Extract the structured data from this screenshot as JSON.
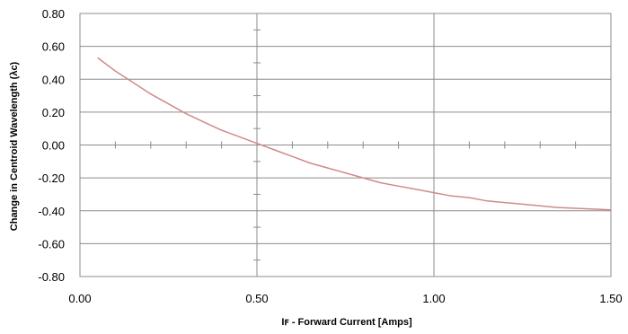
{
  "chart_data": {
    "type": "line",
    "title": "",
    "xlabel": "Iꜰ - Forward Current [Amps]",
    "ylabel": "Change in Centroid Wavelength (λc)",
    "xlim": [
      0,
      1.5
    ],
    "ylim": [
      -0.8,
      0.8
    ],
    "x_ticks": [
      0,
      0.5,
      1.0,
      1.5
    ],
    "x_tick_labels": [
      "0.00",
      "0.50",
      "1.00",
      "1.50"
    ],
    "y_ticks": [
      0.8,
      0.6,
      0.4,
      0.2,
      0,
      -0.2,
      -0.4,
      -0.6,
      -0.8
    ],
    "y_tick_labels": [
      "0.80",
      "0.60",
      "0.40",
      "0.20",
      "0.00",
      "-0.20",
      "-0.40",
      "-0.60",
      "-0.80"
    ],
    "grid": true,
    "line_color": "#d08a8a",
    "series": [
      {
        "x": [
          0.05,
          0.1,
          0.15,
          0.2,
          0.25,
          0.3,
          0.35,
          0.4,
          0.45,
          0.5,
          0.55,
          0.6,
          0.65,
          0.7,
          0.75,
          0.8,
          0.85,
          0.9,
          0.95,
          1.0,
          1.05,
          1.1,
          1.15,
          1.2,
          1.25,
          1.3,
          1.35,
          1.4,
          1.45,
          1.5
        ],
        "y": [
          0.53,
          0.45,
          0.38,
          0.31,
          0.25,
          0.19,
          0.14,
          0.09,
          0.05,
          0.01,
          -0.03,
          -0.07,
          -0.11,
          -0.14,
          -0.17,
          -0.2,
          -0.23,
          -0.25,
          -0.27,
          -0.29,
          -0.31,
          -0.32,
          -0.34,
          -0.35,
          -0.36,
          -0.37,
          -0.38,
          -0.385,
          -0.39,
          -0.395
        ]
      }
    ]
  }
}
